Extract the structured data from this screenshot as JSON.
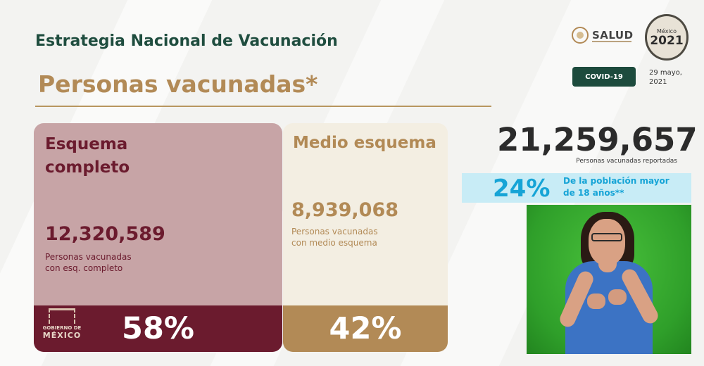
{
  "header": {
    "strategy_title": "Estrategia Nacional de Vacunación",
    "section_title": "Personas vacunadas*"
  },
  "logos": {
    "salud": "SALUD",
    "mexico_small": "México",
    "mexico_year": "2021",
    "gobierno_text": "GOBIERNO DE",
    "gobierno_mexico": "MÉXICO"
  },
  "badge": {
    "label": "COVID-19"
  },
  "date": {
    "line1": "29 mayo,",
    "line2": "2021"
  },
  "cards": {
    "complete": {
      "heading_line1": "Esquema",
      "heading_line2": "completo",
      "value": "12,320,589",
      "desc_line1": "Personas vacunadas",
      "desc_line2": "con esq. completo",
      "percent": "58%"
    },
    "half": {
      "heading": "Medio esquema",
      "value": "8,939,068",
      "desc_line1": "Personas vacunadas",
      "desc_line2": "con medio esquema",
      "percent": "42%"
    }
  },
  "total": {
    "value": "21,259,657",
    "label": "Personas vacunadas reportadas"
  },
  "population": {
    "percent": "24%",
    "text_line1": "De la población mayor",
    "text_line2": "de 18 años**"
  },
  "colors": {
    "dark_green": "#1d4b3d",
    "gold": "#b28a56",
    "maroon": "#6b1b2e",
    "rose": "#c7a4a6",
    "cream": "#f3eee2",
    "cyan": "#16a4d6"
  }
}
